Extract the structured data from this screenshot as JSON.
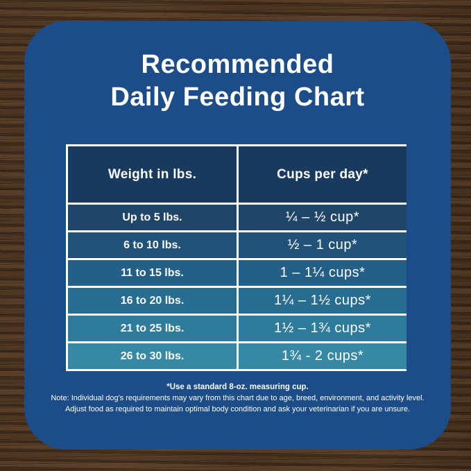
{
  "title": {
    "line1": "Recommended",
    "line2": "Daily Feeding Chart"
  },
  "table": {
    "headers": {
      "weight": "Weight in lbs.",
      "cups": "Cups per day*"
    },
    "rows": [
      {
        "weight": "Up to 5 lbs.",
        "cups": "¼ – ½ cup*",
        "color": "#1F4569"
      },
      {
        "weight": "6 to 10 lbs.",
        "cups": "½ – 1 cup*",
        "color": "#21527A"
      },
      {
        "weight": "11 to 15 lbs.",
        "cups": "1 – 1¼ cups*",
        "color": "#245F87"
      },
      {
        "weight": "16 to 20 lbs.",
        "cups": "1¼ – 1½ cups*",
        "color": "#276D92"
      },
      {
        "weight": "21 to 25 lbs.",
        "cups": "1½ – 1¾ cups*",
        "color": "#2E7B9B"
      },
      {
        "weight": "26 to 30 lbs.",
        "cups": "1¾ - 2 cups*",
        "color": "#3688A5"
      }
    ],
    "header_color": "#193A5F",
    "grid_color": "#FFFFFF"
  },
  "footnotes": {
    "line1": "*Use a standard 8-oz. measuring cup.",
    "line2": "Note: Individual dog's requirements may vary from this chart due to age, breed, environment, and activity level.",
    "line3": "Adjust food as required to maintain optimal body condition and ask your veterinarian if you are unsure."
  },
  "colors": {
    "panel": "#1C4D88",
    "text": "#FFFFFF",
    "wood_base": "#46311F"
  },
  "chart_data": {
    "type": "table",
    "title": "Recommended Daily Feeding Chart",
    "columns": [
      "Weight in lbs.",
      "Cups per day*"
    ],
    "rows": [
      [
        "Up to 5 lbs.",
        "¼ – ½ cup*"
      ],
      [
        "6 to 10 lbs.",
        "½ – 1 cup*"
      ],
      [
        "11 to 15 lbs.",
        "1 – 1¼ cups*"
      ],
      [
        "16 to 20 lbs.",
        "1¼ – 1½ cups*"
      ],
      [
        "21 to 25 lbs.",
        "1½ – 1¾ cups*"
      ],
      [
        "26 to 30 lbs.",
        "1¾ - 2 cups*"
      ]
    ],
    "notes": [
      "*Use a standard 8-oz. measuring cup.",
      "Note: Individual dog's requirements may vary from this chart due to age, breed, environment, and activity level.",
      "Adjust food as required to maintain optimal body condition and ask your veterinarian if you are unsure."
    ],
    "layout": {
      "row_color_gradient": [
        "#1F4569",
        "#3688A5"
      ],
      "grid": true
    }
  }
}
